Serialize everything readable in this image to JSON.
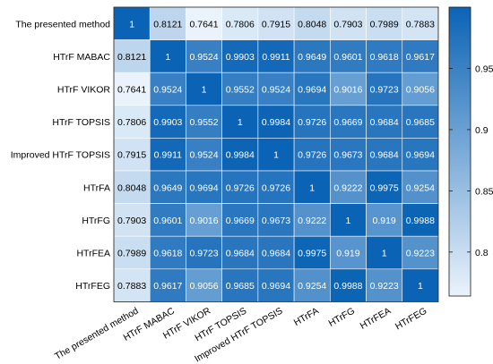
{
  "chart_data": {
    "type": "heatmap",
    "title": "",
    "xlabel": "",
    "ylabel": "",
    "rows": [
      "The presented method",
      "HTrF MABAC",
      "HTrF VIKOR",
      "HTrF TOPSIS",
      "Improved HTrF TOPSIS",
      "HTrFA",
      "HTrFG",
      "HTrFEA",
      "HTrFEG"
    ],
    "columns": [
      "The presented method",
      "HTrF MABAC",
      "HTrF VIKOR",
      "HTrF TOPSIS",
      "Improved HTrF TOPSIS",
      "HTrFA",
      "HTrFG",
      "HTrFEA",
      "HTrFEG"
    ],
    "values": [
      [
        "1",
        "0.8121",
        "0.7641",
        "0.7806",
        "0.7915",
        "0.8048",
        "0.7903",
        "0.7989",
        "0.7883"
      ],
      [
        "0.8121",
        "1",
        "0.9524",
        "0.9903",
        "0.9911",
        "0.9649",
        "0.9601",
        "0.9618",
        "0.9617"
      ],
      [
        "0.7641",
        "0.9524",
        "1",
        "0.9552",
        "0.9524",
        "0.9694",
        "0.9016",
        "0.9723",
        "0.9056"
      ],
      [
        "0.7806",
        "0.9903",
        "0.9552",
        "1",
        "0.9984",
        "0.9726",
        "0.9669",
        "0.9684",
        "0.9685"
      ],
      [
        "0.7915",
        "0.9911",
        "0.9524",
        "0.9984",
        "1",
        "0.9726",
        "0.9673",
        "0.9684",
        "0.9694"
      ],
      [
        "0.8048",
        "0.9649",
        "0.9694",
        "0.9726",
        "0.9726",
        "1",
        "0.9222",
        "0.9975",
        "0.9254"
      ],
      [
        "0.7903",
        "0.9601",
        "0.9016",
        "0.9669",
        "0.9673",
        "0.9222",
        "1",
        "0.919",
        "0.9988"
      ],
      [
        "0.7989",
        "0.9618",
        "0.9723",
        "0.9684",
        "0.9684",
        "0.9975",
        "0.919",
        "1",
        "0.9223"
      ],
      [
        "0.7883",
        "0.9617",
        "0.9056",
        "0.9685",
        "0.9694",
        "0.9254",
        "0.9988",
        "0.9223",
        "1"
      ]
    ],
    "colorbar": {
      "min": 0.7641,
      "max": 1,
      "ticks": [
        "0.8",
        "0.85",
        "0.9",
        "0.95"
      ],
      "color_low": "#eaf3fb",
      "color_high": "#0b63b5"
    }
  }
}
